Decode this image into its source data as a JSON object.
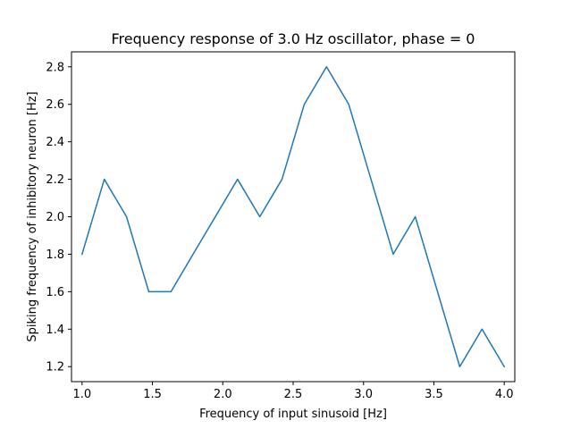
{
  "chart_data": {
    "type": "line",
    "title": "Frequency response of 3.0 Hz oscillator, phase = 0",
    "xlabel": "Frequency of input sinusoid [Hz]",
    "ylabel": "Spiking frequency of inhibitory neuron [Hz]",
    "xlim": [
      0.925,
      4.075
    ],
    "ylim": [
      1.12,
      2.88
    ],
    "xticks": [
      1.0,
      1.5,
      2.0,
      2.5,
      3.0,
      3.5,
      4.0
    ],
    "xtick_labels": [
      "1.0",
      "1.5",
      "2.0",
      "2.5",
      "3.0",
      "3.5",
      "4.0"
    ],
    "yticks": [
      1.2,
      1.4,
      1.6,
      1.8,
      2.0,
      2.2,
      2.4,
      2.6,
      2.8
    ],
    "ytick_labels": [
      "1.2",
      "1.4",
      "1.6",
      "1.8",
      "2.0",
      "2.2",
      "2.4",
      "2.6",
      "2.8"
    ],
    "grid": false,
    "colors": {
      "line": "#1f77b4"
    },
    "series": [
      {
        "x": [
          1.0,
          1.158,
          1.316,
          1.474,
          1.632,
          1.789,
          1.947,
          2.105,
          2.263,
          2.421,
          2.579,
          2.737,
          2.895,
          3.053,
          3.211,
          3.368,
          3.526,
          3.684,
          3.842,
          4.0
        ],
        "y": [
          1.8,
          2.2,
          2.0,
          1.6,
          1.6,
          1.8,
          2.0,
          2.2,
          2.0,
          2.2,
          2.6,
          2.8,
          2.6,
          2.2,
          1.8,
          2.0,
          1.6,
          1.2,
          1.4,
          1.2
        ]
      }
    ]
  }
}
